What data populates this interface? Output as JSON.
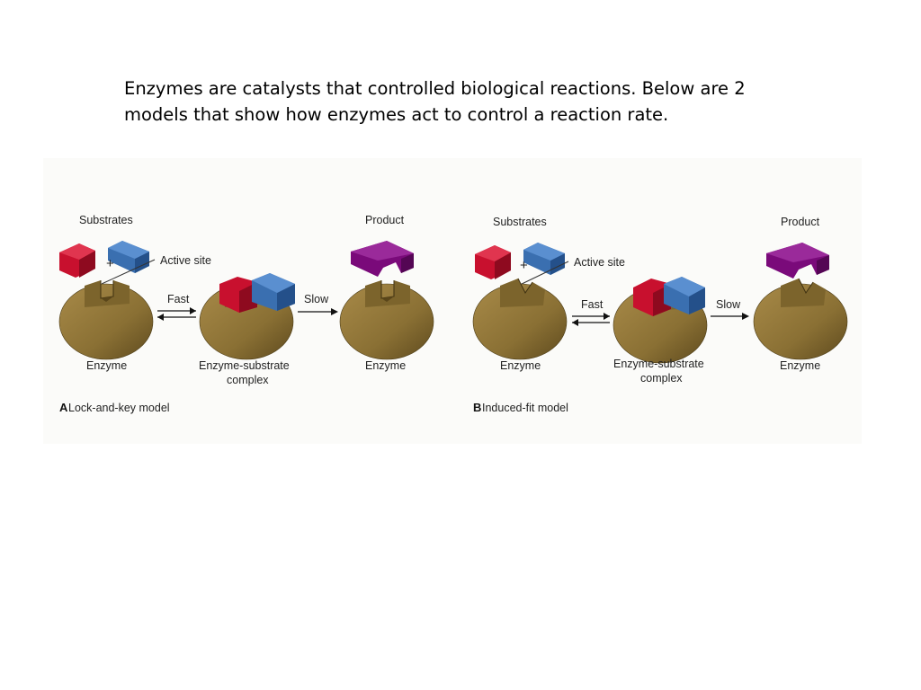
{
  "intro_text": "Enzymes are catalysts that controlled biological reactions. Below are 2 models that show how enzymes act to control a reaction rate.",
  "panels": [
    {
      "substrates_label": "Substrates",
      "plus": "+",
      "active_site_label": "Active site",
      "enzyme_label": "Enzyme",
      "fast_label": "Fast",
      "complex_label_line1": "Enzyme-substrate",
      "complex_label_line2": "complex",
      "slow_label": "Slow",
      "product_label": "Product",
      "enzyme_label_2": "Enzyme",
      "caption_letter": "A",
      "caption_text": "Lock-and-key model"
    },
    {
      "substrates_label": "Substrates",
      "plus": "+",
      "active_site_label": "Active site",
      "enzyme_label": "Enzyme",
      "fast_label": "Fast",
      "complex_label_line1": "Enzyme-substrate",
      "complex_label_line2": "complex",
      "slow_label": "Slow",
      "product_label": "Product",
      "enzyme_label_2": "Enzyme",
      "caption_letter": "B",
      "caption_text": "Induced-fit model"
    }
  ],
  "colors": {
    "enzyme": "#8a7034",
    "substrate_red": "#c8102e",
    "substrate_blue": "#3a6fb0",
    "product": "#7a0a7a"
  }
}
